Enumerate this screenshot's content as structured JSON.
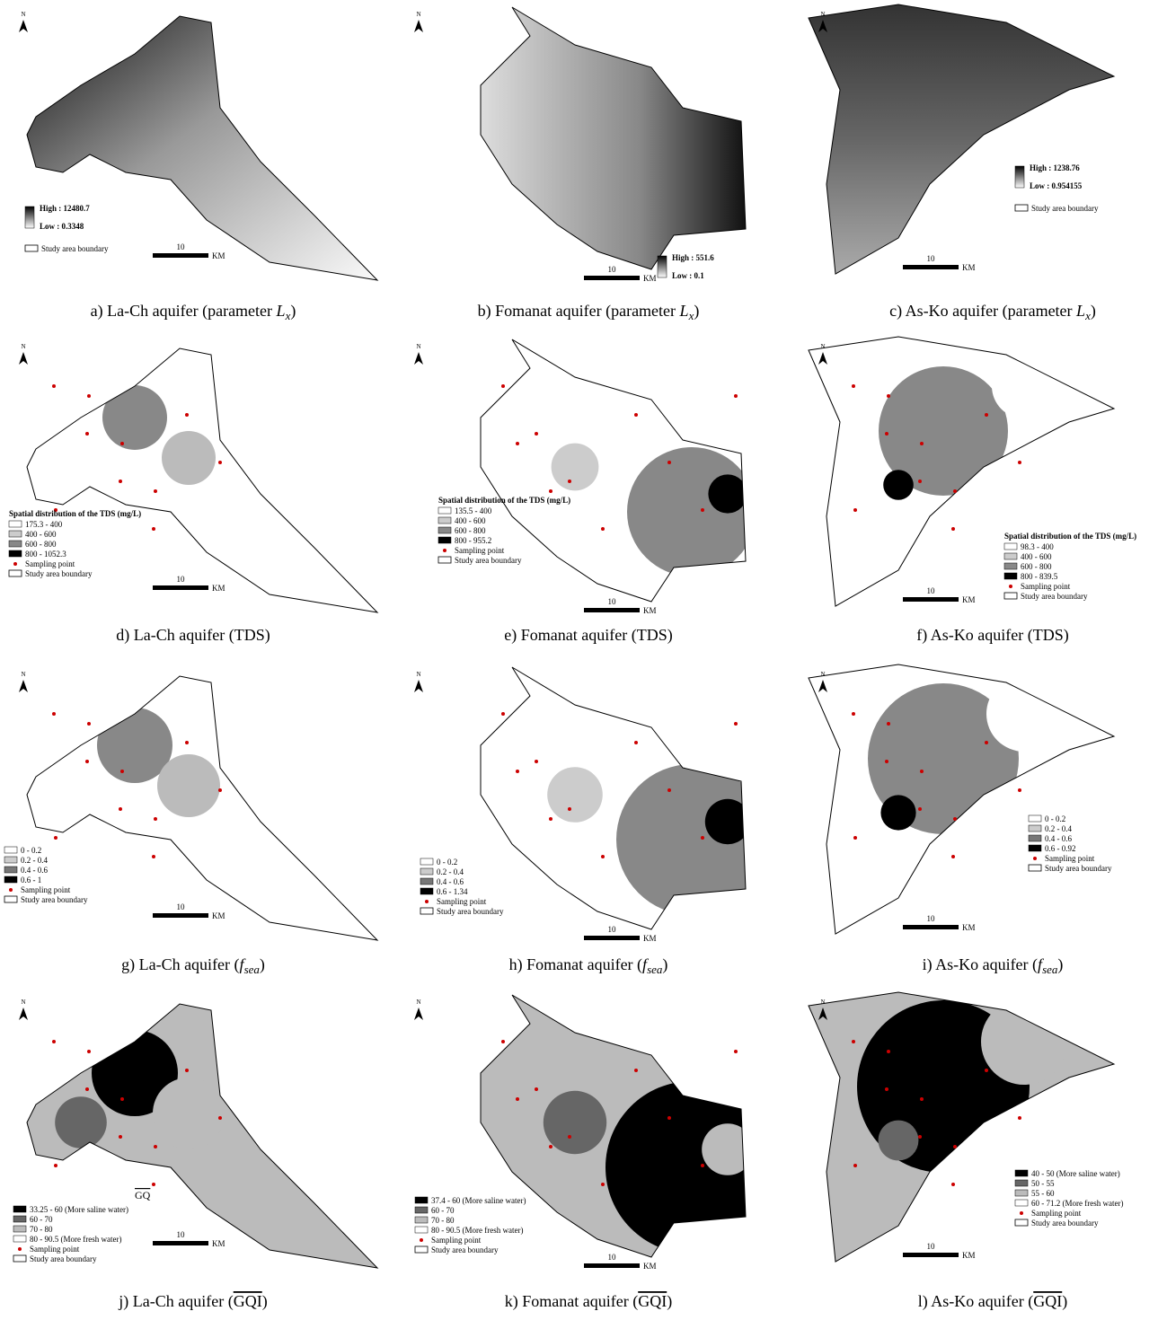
{
  "panels": [
    {
      "caption": {
        "pre": "a) La-Ch aquifer (parameter ",
        "var": "L",
        "sub": "x",
        "post": ")"
      },
      "north": "N",
      "scale": "10",
      "unit": "KM",
      "ramp": [
        "High : 12480.7",
        "Low : 0.3348"
      ],
      "boundary": "Study area boundary"
    },
    {
      "caption": {
        "pre": "b) Fomanat aquifer (parameter ",
        "var": "L",
        "sub": "x",
        "post": ")"
      },
      "north": "N",
      "scale": "10",
      "unit": "KM",
      "ramp": [
        "High : 551.6",
        "Low : 0.1"
      ]
    },
    {
      "caption": {
        "pre": "c) As-Ko aquifer (parameter ",
        "var": "L",
        "sub": "x",
        "post": ")"
      },
      "north": "N",
      "scale": "10",
      "unit": "KM",
      "ramp": [
        "High : 1238.76",
        "Low : 0.954155"
      ],
      "boundary": "Study area boundary"
    },
    {
      "caption": {
        "pre": "d) La-Ch aquifer (TDS)"
      },
      "north": "N",
      "scale": "10",
      "unit": "KM",
      "legend_title": "Spatial distribution of the TDS (mg/L)",
      "classes": [
        "175.3 - 400",
        "400 - 600",
        "600 - 800",
        "800 - 1052.3"
      ],
      "class_colors": [
        "#ffffff",
        "#cccccc",
        "#888888",
        "#000000"
      ],
      "point": "Sampling point",
      "boundary": "Study area boundary"
    },
    {
      "caption": {
        "pre": "e) Fomanat aquifer (TDS)"
      },
      "north": "N",
      "scale": "10",
      "unit": "KM",
      "legend_title": "Spatial distribution of the TDS (mg/L)",
      "classes": [
        "135.5 - 400",
        "400 - 600",
        "600 - 800",
        "800 - 955.2"
      ],
      "class_colors": [
        "#ffffff",
        "#cccccc",
        "#888888",
        "#000000"
      ],
      "point": "Sampling point",
      "boundary": "Study area boundary"
    },
    {
      "caption": {
        "pre": "f) As-Ko aquifer (TDS)"
      },
      "north": "N",
      "scale": "10",
      "unit": "KM",
      "legend_title": "Spatial distribution of the TDS (mg/L)",
      "classes": [
        "98.3 - 400",
        "400 - 600",
        "600 - 800",
        "800 - 839.5"
      ],
      "class_colors": [
        "#ffffff",
        "#cccccc",
        "#888888",
        "#000000"
      ],
      "point": "Sampling point",
      "boundary": "Study area boundary"
    },
    {
      "caption": {
        "pre": "g) La-Ch aquifer (",
        "var": "f",
        "sub": "sea",
        "post": ")"
      },
      "north": "N",
      "scale": "10",
      "unit": "KM",
      "classes": [
        "0 - 0.2",
        "0.2 - 0.4",
        "0.4 - 0.6",
        "0.6 - 1"
      ],
      "class_colors": [
        "#ffffff",
        "#cccccc",
        "#777777",
        "#000000"
      ],
      "point": "Sampling point",
      "boundary": "Study area boundary"
    },
    {
      "caption": {
        "pre": "h) Fomanat aquifer (",
        "var": "f",
        "sub": "sea",
        "post": ")"
      },
      "north": "N",
      "scale": "10",
      "unit": "KM",
      "classes": [
        "0 - 0.2",
        "0.2 - 0.4",
        "0.4 - 0.6",
        "0.6 - 1.34"
      ],
      "class_colors": [
        "#ffffff",
        "#cccccc",
        "#777777",
        "#000000"
      ],
      "point": "Sampling point",
      "boundary": "Study area boundary"
    },
    {
      "caption": {
        "pre": "i) As-Ko aquifer (",
        "var": "f",
        "sub": "sea",
        "post": ")"
      },
      "north": "N",
      "scale": "10",
      "unit": "KM",
      "classes": [
        "0 - 0.2",
        "0.2 - 0.4",
        "0.4 - 0.6",
        "0.6 - 0.92"
      ],
      "class_colors": [
        "#ffffff",
        "#cccccc",
        "#777777",
        "#000000"
      ],
      "point": "Sampling point",
      "boundary": "Study area boundary"
    },
    {
      "caption": {
        "pre": "j) La-Ch aquifer (",
        "var": "GQI",
        "post": ")"
      },
      "north": "N",
      "scale": "10",
      "unit": "KM",
      "mark_label": "GQ",
      "classes": [
        "33.25 - 60   (More saline water)",
        "60 - 70",
        "70 - 80",
        "80 - 90.5   (More fresh water)"
      ],
      "class_colors": [
        "#000000",
        "#666666",
        "#bbbbbb",
        "#ffffff"
      ],
      "point": "Sampling point",
      "boundary": "Study area boundary"
    },
    {
      "caption": {
        "pre": "k) Fomanat aquifer (",
        "var": "GQI",
        "post": ")"
      },
      "north": "N",
      "scale": "10",
      "unit": "KM",
      "classes": [
        "37.4 - 60   (More saline water)",
        "60 - 70",
        "70 - 80",
        "80 - 90.5   (More fresh water)"
      ],
      "class_colors": [
        "#000000",
        "#666666",
        "#bbbbbb",
        "#ffffff"
      ],
      "point": "Sampling point",
      "boundary": "Study area boundary"
    },
    {
      "caption": {
        "pre": "l) As-Ko aquifer (",
        "var": "GQI",
        "post": ")"
      },
      "north": "N",
      "scale": "10",
      "unit": "KM",
      "classes": [
        "40 - 50   (More saline water)",
        "50 - 55",
        "55 - 60",
        "60 - 71.2   (More fresh water)"
      ],
      "class_colors": [
        "#000000",
        "#666666",
        "#bbbbbb",
        "#ffffff"
      ],
      "point": "Sampling point",
      "boundary": "Study area boundary"
    }
  ]
}
